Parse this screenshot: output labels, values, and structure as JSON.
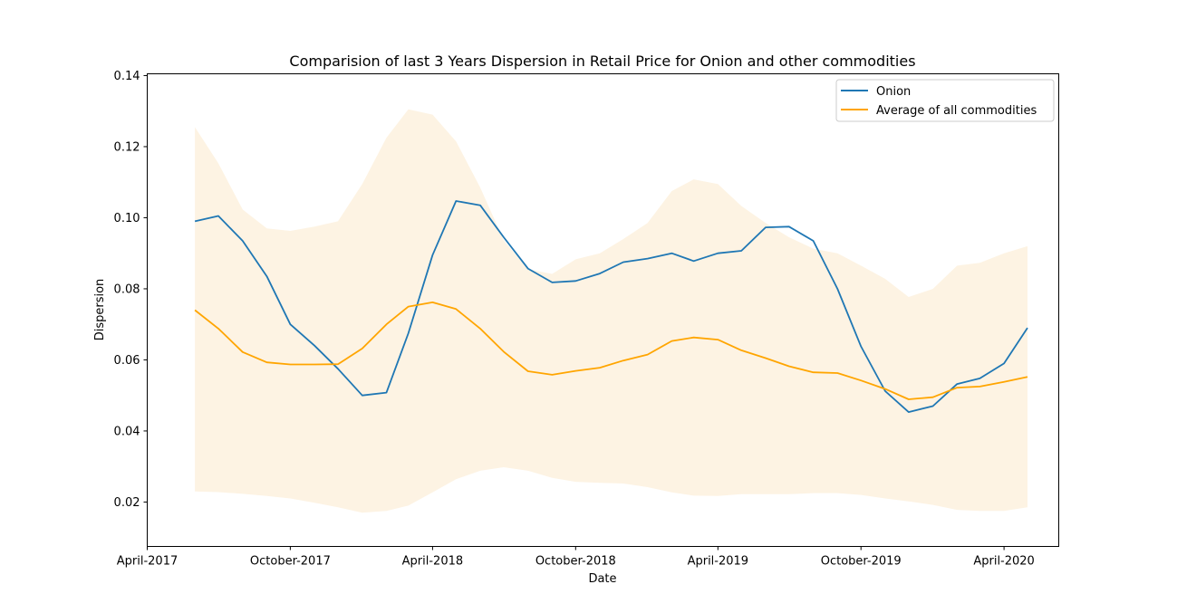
{
  "chart_data": {
    "type": "line",
    "title": "Comparision of last 3 Years Dispersion in Retail Price for Onion and other commodities",
    "xlabel": "Date",
    "ylabel": "Dispersion",
    "xlim": [
      "2017-04-01",
      "2020-06-10"
    ],
    "ylim": [
      0.0075,
      0.1405
    ],
    "x_ticks": [
      {
        "date": "2017-04-01",
        "label": "April-2017"
      },
      {
        "date": "2017-10-01",
        "label": "October-2017"
      },
      {
        "date": "2018-04-01",
        "label": "April-2018"
      },
      {
        "date": "2018-10-01",
        "label": "October-2018"
      },
      {
        "date": "2019-04-01",
        "label": "April-2019"
      },
      {
        "date": "2019-10-01",
        "label": "October-2019"
      },
      {
        "date": "2020-04-01",
        "label": "April-2020"
      }
    ],
    "y_ticks": [
      0.02,
      0.04,
      0.06,
      0.08,
      0.1,
      0.12,
      0.14
    ],
    "y_tick_labels": [
      "0.02",
      "0.04",
      "0.06",
      "0.08",
      "0.10",
      "0.12",
      "0.14"
    ],
    "grid": false,
    "legend_position": "top-right",
    "x": [
      "2017-06-01",
      "2017-07-01",
      "2017-08-01",
      "2017-09-01",
      "2017-10-01",
      "2017-11-01",
      "2017-12-01",
      "2018-01-01",
      "2018-02-01",
      "2018-03-01",
      "2018-04-01",
      "2018-05-01",
      "2018-06-01",
      "2018-07-01",
      "2018-08-01",
      "2018-09-01",
      "2018-10-01",
      "2018-11-01",
      "2018-12-01",
      "2019-01-01",
      "2019-02-01",
      "2019-03-01",
      "2019-04-01",
      "2019-05-01",
      "2019-06-01",
      "2019-07-01",
      "2019-08-01",
      "2019-09-01",
      "2019-10-01",
      "2019-11-01",
      "2019-12-01",
      "2020-01-01",
      "2020-02-01",
      "2020-03-01",
      "2020-04-01",
      "2020-05-01"
    ],
    "series": [
      {
        "name": "Onion",
        "color": "#1f77b4",
        "values": [
          0.099,
          0.1005,
          0.0935,
          0.0835,
          0.07,
          0.064,
          0.0575,
          0.05,
          0.0508,
          0.0675,
          0.0895,
          0.1047,
          0.1035,
          0.0945,
          0.0857,
          0.0818,
          0.0822,
          0.0843,
          0.0875,
          0.0885,
          0.09,
          0.0878,
          0.09,
          0.0907,
          0.0973,
          0.0975,
          0.0935,
          0.08,
          0.0638,
          0.0512,
          0.0453,
          0.047,
          0.0532,
          0.0548,
          0.059,
          0.069
        ]
      },
      {
        "name": "Average of all commodities",
        "color": "#ffa500",
        "values": [
          0.074,
          0.0688,
          0.0622,
          0.0593,
          0.0587,
          0.0587,
          0.0588,
          0.0632,
          0.07,
          0.075,
          0.0762,
          0.0743,
          0.0688,
          0.0623,
          0.0568,
          0.0558,
          0.0569,
          0.0578,
          0.0598,
          0.0615,
          0.0653,
          0.0663,
          0.0657,
          0.0627,
          0.0605,
          0.0582,
          0.0565,
          0.0563,
          0.0542,
          0.0518,
          0.0489,
          0.0495,
          0.0522,
          0.0525,
          0.0538,
          0.0552
        ]
      }
    ],
    "band": {
      "color": "#fdf3e3",
      "lower": [
        0.023,
        0.0228,
        0.0223,
        0.0217,
        0.021,
        0.0198,
        0.0185,
        0.017,
        0.0175,
        0.019,
        0.0227,
        0.0264,
        0.0288,
        0.0298,
        0.0288,
        0.0268,
        0.0257,
        0.0254,
        0.0252,
        0.0242,
        0.0227,
        0.0218,
        0.0217,
        0.0222,
        0.0222,
        0.0222,
        0.0225,
        0.0225,
        0.022,
        0.021,
        0.0202,
        0.0192,
        0.0178,
        0.0175,
        0.0175,
        0.0185
      ],
      "upper": [
        0.1255,
        0.1153,
        0.1023,
        0.097,
        0.0963,
        0.0975,
        0.099,
        0.1095,
        0.1225,
        0.1305,
        0.129,
        0.1215,
        0.1085,
        0.0937,
        0.0855,
        0.0842,
        0.0883,
        0.09,
        0.094,
        0.0985,
        0.1075,
        0.1108,
        0.1095,
        0.1033,
        0.0985,
        0.0945,
        0.0913,
        0.09,
        0.0865,
        0.0828,
        0.0777,
        0.08,
        0.0865,
        0.0873,
        0.09,
        0.092
      ]
    }
  }
}
